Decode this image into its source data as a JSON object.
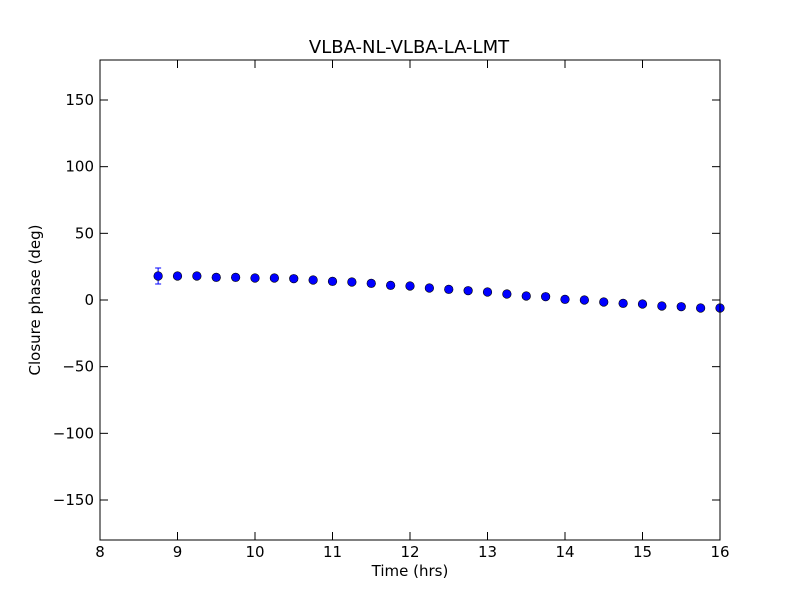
{
  "chart_data": {
    "type": "scatter",
    "title": "VLBA-NL-VLBA-LA-LMT",
    "xlabel": "Time (hrs)",
    "ylabel": "Closure phase (deg)",
    "xlim": [
      8,
      16
    ],
    "ylim": [
      -180,
      180
    ],
    "x_ticks": [
      8,
      9,
      10,
      11,
      12,
      13,
      14,
      15,
      16
    ],
    "x_tick_labels": [
      "8",
      "9",
      "10",
      "11",
      "12",
      "13",
      "14",
      "15",
      "16"
    ],
    "y_ticks": [
      -150,
      -100,
      -50,
      0,
      50,
      100,
      150
    ],
    "y_tick_labels": [
      "−150",
      "−100",
      "−50",
      "0",
      "50",
      "100",
      "150"
    ],
    "grid": false,
    "marker_color": "#0000ff",
    "series": [
      {
        "x": [
          8.75,
          9.0,
          9.25,
          9.5,
          9.75,
          10.0,
          10.25,
          10.5,
          10.75,
          11.0,
          11.25,
          11.5,
          11.75,
          12.0,
          12.25,
          12.5,
          12.75,
          13.0,
          13.25,
          13.5,
          13.75,
          14.0,
          14.25,
          14.5,
          14.75,
          15.0,
          15.25,
          15.5,
          15.75,
          16.0
        ],
        "y": [
          18,
          18,
          18,
          17,
          17,
          16.5,
          16.5,
          16,
          15,
          14,
          13.5,
          12.5,
          11,
          10.5,
          9,
          8,
          7,
          6,
          4.5,
          3,
          2.5,
          0.5,
          0,
          -1.5,
          -2.5,
          -3,
          -4.5,
          -5,
          -6,
          -6
        ],
        "yerr": [
          6,
          2,
          2,
          2,
          2,
          2,
          2,
          2,
          2,
          2,
          2,
          2,
          2,
          2,
          2,
          2,
          2,
          2,
          2,
          2,
          2,
          2,
          2,
          2,
          2,
          2,
          2,
          2,
          2,
          2
        ]
      }
    ]
  }
}
